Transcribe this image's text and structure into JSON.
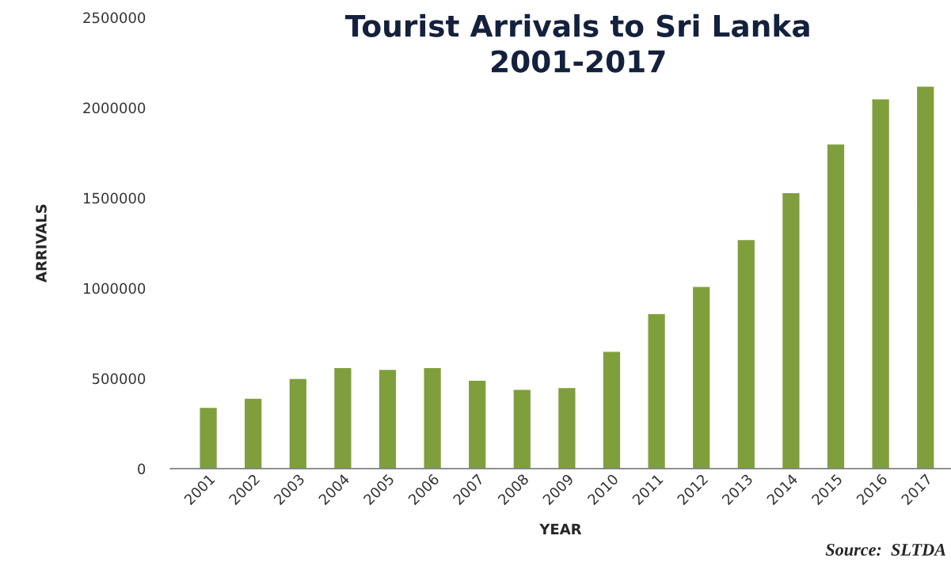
{
  "chart_data": {
    "type": "bar",
    "title": "Tourist Arrivals to Sri Lanka\n2001-2017",
    "xlabel": "YEAR",
    "ylabel": "ARRIVALS",
    "categories": [
      "2001",
      "2002",
      "2003",
      "2004",
      "2005",
      "2006",
      "2007",
      "2008",
      "2009",
      "2010",
      "2011",
      "2012",
      "2013",
      "2014",
      "2015",
      "2016",
      "2017"
    ],
    "values": [
      340000,
      390000,
      500000,
      560000,
      550000,
      560000,
      490000,
      440000,
      450000,
      650000,
      860000,
      1010000,
      1270000,
      1530000,
      1800000,
      2050000,
      2120000
    ],
    "color": "#7f9f3c",
    "ylim": [
      0,
      2500000
    ],
    "yticks": [
      0,
      500000,
      1000000,
      1500000,
      2000000,
      2500000
    ],
    "grid": false,
    "annotations": [
      "Source:  SLTDA"
    ]
  }
}
